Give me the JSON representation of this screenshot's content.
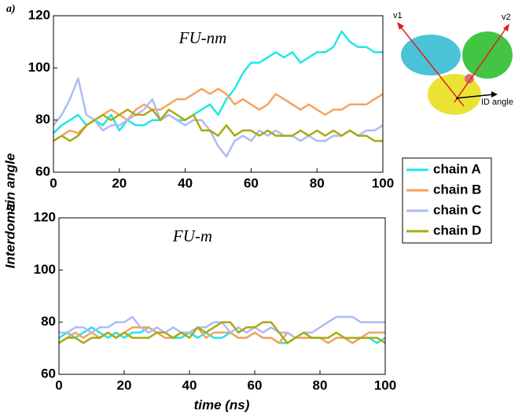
{
  "chart_data": [
    {
      "type": "line",
      "panel_label": "a)",
      "title": "FU-nm",
      "ylabel": "Interdomain angle",
      "legend": "outside-right",
      "annotations": [
        "v1",
        "v2",
        "ID angle"
      ],
      "x": [
        0,
        2.5,
        5,
        7.5,
        10,
        12.5,
        15,
        17.5,
        20,
        22.5,
        25,
        27.5,
        30,
        32.5,
        35,
        37.5,
        40,
        42.5,
        45,
        47.5,
        50,
        52.5,
        55,
        57.5,
        60,
        62.5,
        65,
        67.5,
        70,
        72.5,
        75,
        77.5,
        80,
        82.5,
        85,
        87.5,
        90,
        92.5,
        95,
        97.5,
        100
      ],
      "xlim": [
        0,
        100
      ],
      "xticks": [
        0,
        20,
        40,
        60,
        80,
        100
      ],
      "ylim": [
        60,
        120
      ],
      "yticks": [
        60,
        80,
        100,
        120
      ],
      "series": [
        {
          "name": "chain A",
          "color": "#22e6e6",
          "values": [
            75,
            78,
            80,
            82,
            78,
            80,
            78,
            82,
            76,
            80,
            78,
            78,
            80,
            80,
            82,
            80,
            80,
            82,
            84,
            86,
            82,
            88,
            92,
            98,
            102,
            102,
            104,
            106,
            104,
            106,
            102,
            104,
            106,
            106,
            108,
            114,
            110,
            108,
            108,
            106,
            106
          ]
        },
        {
          "name": "chain B",
          "color": "#f5a35f",
          "values": [
            72,
            74,
            76,
            75,
            78,
            80,
            82,
            84,
            82,
            80,
            84,
            86,
            84,
            84,
            86,
            88,
            88,
            90,
            92,
            90,
            92,
            90,
            86,
            88,
            86,
            84,
            86,
            90,
            88,
            86,
            84,
            86,
            84,
            82,
            84,
            84,
            86,
            86,
            86,
            88,
            90
          ]
        },
        {
          "name": "chain C",
          "color": "#adbcf2",
          "values": [
            78,
            82,
            88,
            96,
            82,
            80,
            76,
            78,
            78,
            80,
            82,
            84,
            88,
            80,
            82,
            80,
            78,
            80,
            80,
            76,
            70,
            66,
            72,
            74,
            72,
            76,
            74,
            76,
            74,
            74,
            72,
            74,
            72,
            72,
            74,
            74,
            76,
            74,
            76,
            76,
            78
          ]
        },
        {
          "name": "chain D",
          "color": "#a9aa12",
          "values": [
            72,
            74,
            72,
            74,
            78,
            80,
            82,
            80,
            82,
            84,
            82,
            82,
            84,
            80,
            84,
            82,
            80,
            82,
            76,
            76,
            74,
            78,
            74,
            76,
            76,
            74,
            76,
            74,
            74,
            74,
            76,
            74,
            76,
            74,
            76,
            74,
            76,
            74,
            74,
            72,
            72
          ]
        }
      ]
    },
    {
      "type": "line",
      "panel_label": "b)",
      "title": "FU-m",
      "xlabel": "time (ns)",
      "x": [
        0,
        2.5,
        5,
        7.5,
        10,
        12.5,
        15,
        17.5,
        20,
        22.5,
        25,
        27.5,
        30,
        32.5,
        35,
        37.5,
        40,
        42.5,
        45,
        47.5,
        50,
        52.5,
        55,
        57.5,
        60,
        62.5,
        65,
        67.5,
        70,
        72.5,
        75,
        77.5,
        80,
        82.5,
        85,
        87.5,
        90,
        92.5,
        95,
        97.5,
        100
      ],
      "xlim": [
        0,
        100
      ],
      "xticks": [
        0,
        20,
        40,
        60,
        80,
        100
      ],
      "ylim": [
        60,
        120
      ],
      "yticks": [
        60,
        80,
        100,
        120
      ],
      "series": [
        {
          "name": "chain A",
          "color": "#22e6e6",
          "values": [
            74,
            76,
            74,
            76,
            78,
            76,
            74,
            76,
            74,
            76,
            76,
            78,
            76,
            74,
            74,
            74,
            76,
            74,
            76,
            74,
            74,
            76,
            74,
            74,
            76,
            74,
            74,
            72,
            72,
            74,
            74,
            74,
            74,
            72,
            74,
            74,
            72,
            74,
            74,
            72,
            74
          ]
        },
        {
          "name": "chain B",
          "color": "#f5a35f",
          "values": [
            72,
            74,
            76,
            74,
            76,
            74,
            76,
            74,
            76,
            78,
            78,
            78,
            76,
            74,
            74,
            76,
            76,
            78,
            74,
            76,
            76,
            76,
            74,
            74,
            76,
            74,
            74,
            72,
            76,
            74,
            74,
            74,
            74,
            72,
            74,
            74,
            72,
            74,
            76,
            76,
            76
          ]
        },
        {
          "name": "chain C",
          "color": "#adbcf2",
          "values": [
            76,
            76,
            78,
            78,
            76,
            78,
            78,
            80,
            80,
            82,
            78,
            76,
            78,
            76,
            78,
            76,
            76,
            78,
            78,
            80,
            80,
            76,
            78,
            76,
            78,
            76,
            78,
            76,
            76,
            74,
            76,
            76,
            78,
            80,
            82,
            82,
            82,
            80,
            80,
            80,
            80
          ]
        },
        {
          "name": "chain D",
          "color": "#a9aa12",
          "values": [
            72,
            74,
            74,
            72,
            74,
            74,
            76,
            74,
            76,
            74,
            74,
            74,
            76,
            76,
            74,
            76,
            74,
            78,
            76,
            78,
            80,
            80,
            76,
            78,
            78,
            80,
            80,
            76,
            72,
            74,
            76,
            74,
            74,
            74,
            76,
            74,
            74,
            74,
            74,
            74,
            72
          ]
        }
      ]
    }
  ]
}
